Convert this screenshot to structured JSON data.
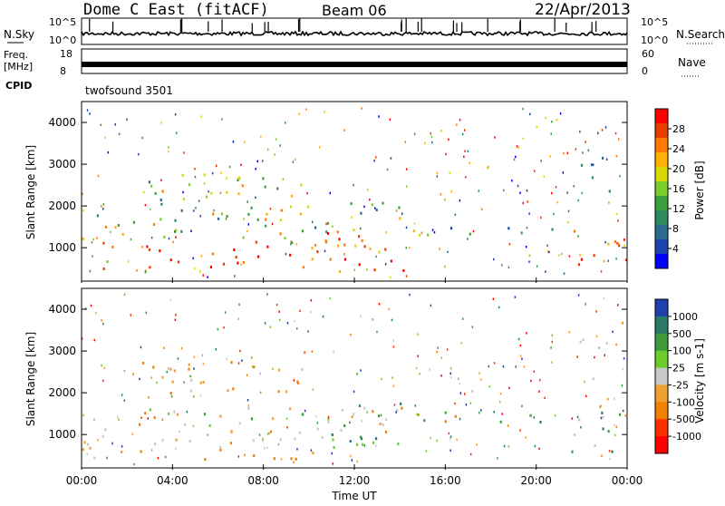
{
  "header": {
    "title": "Dome C East (fitACF)",
    "beam": "Beam 06",
    "date": "22/Apr/2013"
  },
  "noise_panel": {
    "left_label": "N.Sky",
    "left_ticks": [
      "10^5",
      "10^0"
    ],
    "right_label": "N.Search",
    "right_ticks": [
      "10^5",
      "10^0"
    ]
  },
  "freq_panel": {
    "left_label_1": "Freq.",
    "left_label_2": "[MHz]",
    "left_ticks": [
      "18",
      "8"
    ],
    "right_label": "Nave",
    "right_ticks": [
      "60",
      "0"
    ]
  },
  "cpid_panel": {
    "label": "CPID",
    "program": "twofsound 3501"
  },
  "chart_data": [
    {
      "type": "heatmap",
      "name": "power",
      "ylabel": "Slant Range [km]",
      "yticks": [
        1000,
        2000,
        3000,
        4000
      ],
      "ylim": [
        200,
        4500
      ],
      "xlim": [
        "00:00",
        "24:00"
      ],
      "colorbar": {
        "label": "Power [dB]",
        "ticks": [
          "28",
          "24",
          "20",
          "16",
          "12",
          "8",
          "4"
        ],
        "colors": [
          "#ff0000",
          "#e83c00",
          "#ff7a00",
          "#ffb000",
          "#d8d800",
          "#7ccc2a",
          "#3ca03c",
          "#2e8a5a",
          "#2c6a90",
          "#1c44b0",
          "#0000ff"
        ]
      },
      "regions": [
        {
          "t0": 0.0,
          "t1": 14.2,
          "r0": 450,
          "r1": 1400,
          "level": "high"
        },
        {
          "t0": 0.0,
          "t1": 14.2,
          "r0": 1400,
          "r1": 2100,
          "level": "mid"
        },
        {
          "t0": 2.5,
          "t1": 10.5,
          "r0": 2000,
          "r1": 2800,
          "level": "low"
        },
        {
          "t0": 14.2,
          "t1": 21.5,
          "r0": 1300,
          "r1": 1600,
          "level": "low"
        },
        {
          "t0": 21.3,
          "t1": 24.0,
          "r0": 600,
          "r1": 1500,
          "level": "high"
        },
        {
          "t0": 21.5,
          "t1": 24.0,
          "r0": 2000,
          "r1": 3900,
          "level": "sparse"
        }
      ]
    },
    {
      "type": "heatmap",
      "name": "velocity",
      "ylabel": "Slant Range [km]",
      "yticks": [
        1000,
        2000,
        3000,
        4000
      ],
      "ylim": [
        200,
        4500
      ],
      "xlim": [
        "00:00",
        "24:00"
      ],
      "colorbar": {
        "label": "Velocity [m s-1]",
        "ticks": [
          "1000",
          "500",
          "100",
          "25",
          "-25",
          "-100",
          "-500",
          "-1000"
        ],
        "colors": [
          "#2040b0",
          "#2a7a6a",
          "#3c9c3c",
          "#6ccc2a",
          "#c8c8c8",
          "#f0a030",
          "#f08000",
          "#ff3000",
          "#ff0000"
        ]
      },
      "regions": [
        {
          "t0": 0.0,
          "t1": 10.5,
          "r0": 400,
          "r1": 900,
          "level": "orange"
        },
        {
          "t0": 0.0,
          "t1": 14.2,
          "r0": 900,
          "r1": 1700,
          "level": "mixed"
        },
        {
          "t0": 2.5,
          "t1": 10.5,
          "r0": 2000,
          "r1": 2800,
          "level": "orange"
        },
        {
          "t0": 10.5,
          "t1": 14.2,
          "r0": 700,
          "r1": 1800,
          "level": "green"
        },
        {
          "t0": 14.2,
          "t1": 21.5,
          "r0": 1300,
          "r1": 1600,
          "level": "green"
        },
        {
          "t0": 21.3,
          "t1": 24.0,
          "r0": 600,
          "r1": 1600,
          "level": "teal"
        },
        {
          "t0": 21.5,
          "t1": 24.0,
          "r0": 2000,
          "r1": 3800,
          "level": "grey"
        }
      ]
    }
  ],
  "x_axis": {
    "ticks": [
      "00:00",
      "04:00",
      "08:00",
      "12:00",
      "16:00",
      "20:00",
      "00:00"
    ],
    "label": "Time UT"
  }
}
